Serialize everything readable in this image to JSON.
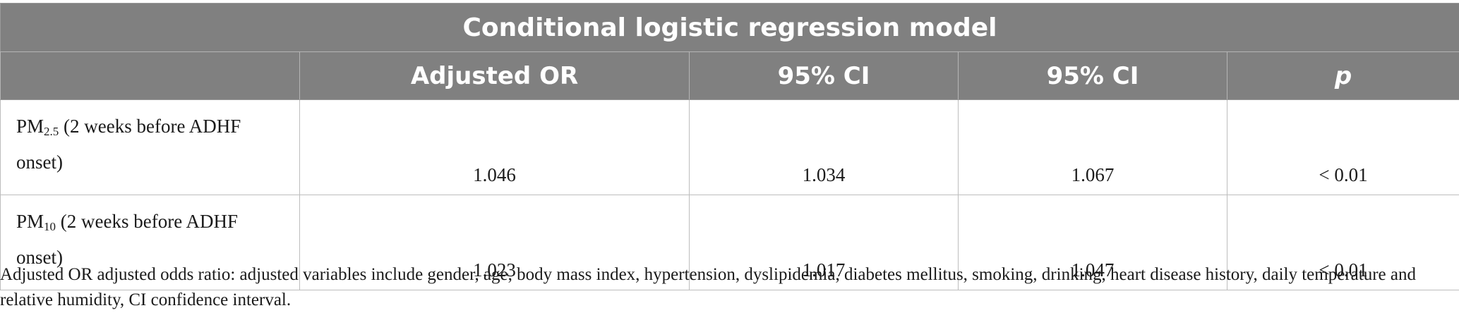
{
  "table": {
    "title": "Conditional logistic regression model",
    "headers": [
      "",
      "Adjusted OR",
      "95% CI",
      "95% CI",
      "p"
    ],
    "rows": [
      {
        "label_main": "PM",
        "label_sub": "2.5",
        "label_rest": " (2 weeks before ADHF onset)",
        "adjusted_or": "1.046",
        "ci_low": "1.034",
        "ci_high": "1.067",
        "p": "< 0.01"
      },
      {
        "label_main": "PM",
        "label_sub": "10",
        "label_rest": " (2 weeks before ADHF onset)",
        "adjusted_or": "1.023",
        "ci_low": "1.017",
        "ci_high": "1.047",
        "p": "< 0.01"
      }
    ]
  },
  "footnote": "Adjusted OR adjusted odds ratio: adjusted variables include gender, age, body mass index, hypertension, dyslipidemia, diabetes mellitus, smoking, drinking, heart disease history, daily temperature and relative humidity, CI confidence interval.",
  "colors": {
    "header_bg": "#808080",
    "header_text": "#ffffff",
    "body_text": "#1a1a1a",
    "grid": "#bdbdbd"
  }
}
